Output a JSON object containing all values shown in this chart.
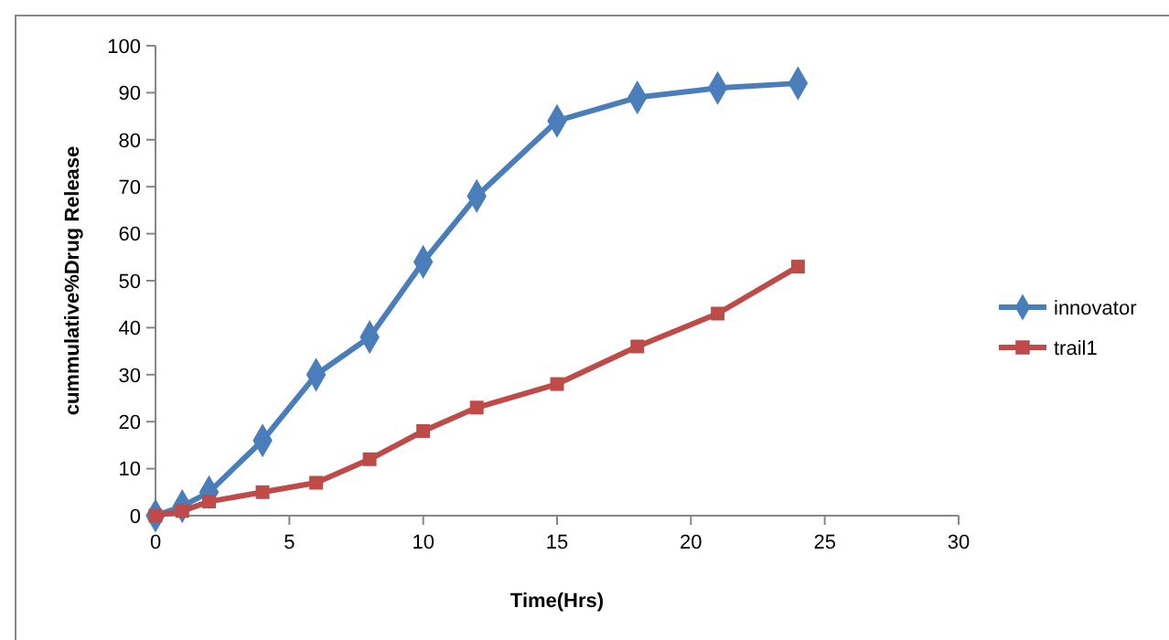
{
  "chart_data": {
    "type": "line",
    "xlabel": "Time(Hrs)",
    "ylabel": "cummulative%Drug Release",
    "xlim": [
      0,
      30
    ],
    "xticks": [
      0,
      5,
      10,
      15,
      20,
      25,
      30
    ],
    "ylim": [
      0,
      100
    ],
    "yticks": [
      0,
      10,
      20,
      30,
      40,
      50,
      60,
      70,
      80,
      90,
      100
    ],
    "grid": false,
    "legend": "right",
    "line_style": "solid",
    "series": [
      {
        "name": "innovator",
        "color": "#4a7ebb",
        "marker": "diamond",
        "x": [
          0,
          1,
          2,
          4,
          6,
          8,
          10,
          12,
          15,
          18,
          21,
          24
        ],
        "values": [
          0,
          2,
          5,
          16,
          30,
          38,
          54,
          68,
          84,
          89,
          91,
          92
        ]
      },
      {
        "name": "trail1",
        "color": "#be4b48",
        "marker": "square",
        "x": [
          0,
          1,
          2,
          4,
          6,
          8,
          10,
          12,
          15,
          18,
          21,
          24
        ],
        "values": [
          0,
          1,
          3,
          5,
          7,
          12,
          18,
          23,
          28,
          36,
          43,
          53
        ]
      }
    ]
  }
}
